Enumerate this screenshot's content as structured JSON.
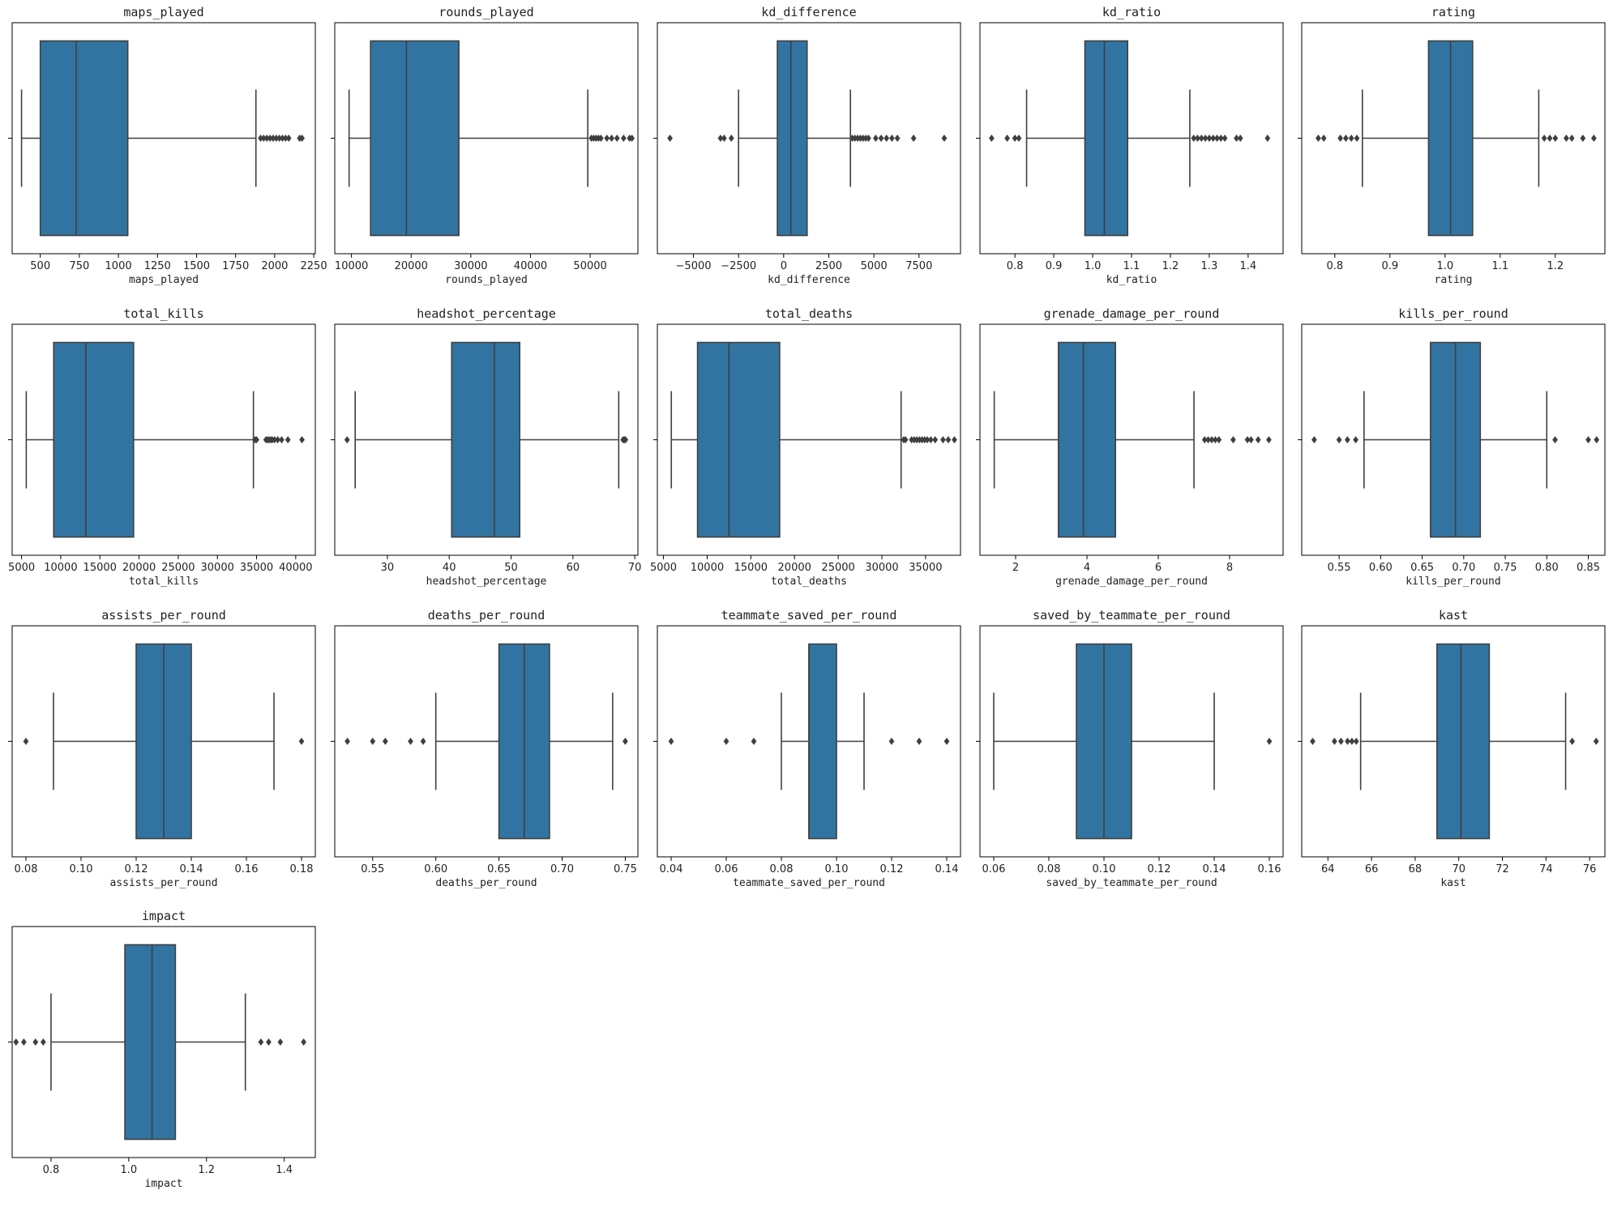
{
  "figure": {
    "box_color": "#3274a1",
    "line_color": "#3f3f3f",
    "outlier_color": "#3f3f3f"
  },
  "chart_data": [
    {
      "type": "box",
      "title": "maps_played",
      "xlabel": "maps_played",
      "xlim": [
        320,
        2260
      ],
      "ticks": [
        500,
        750,
        1000,
        1250,
        1500,
        1750,
        2000,
        2250
      ],
      "tick_labels": [
        "500",
        "750",
        "1000",
        "1250",
        "1500",
        "1750",
        "2000",
        "2250"
      ],
      "whisker_low": 380,
      "q1": 500,
      "median": 730,
      "q3": 1060,
      "whisker_high": 1880,
      "outliers": [
        1910,
        1930,
        1950,
        1970,
        1990,
        2010,
        2030,
        2050,
        2070,
        2090,
        2160,
        2175
      ]
    },
    {
      "type": "box",
      "title": "rounds_played",
      "xlabel": "rounds_played",
      "xlim": [
        7200,
        58000
      ],
      "ticks": [
        10000,
        20000,
        30000,
        40000,
        50000
      ],
      "tick_labels": [
        "10000",
        "20000",
        "30000",
        "40000",
        "50000"
      ],
      "whisker_low": 9600,
      "q1": 13200,
      "median": 19200,
      "q3": 28000,
      "whisker_high": 49600,
      "outliers": [
        50200,
        50600,
        51000,
        51400,
        51800,
        52800,
        53600,
        54500,
        55600,
        56600,
        57000
      ]
    },
    {
      "type": "box",
      "title": "kd_difference",
      "xlabel": "kd_difference",
      "xlim": [
        -7000,
        9800
      ],
      "ticks": [
        -5000,
        -2500,
        0,
        2500,
        5000,
        7500
      ],
      "tick_labels": [
        "−5000",
        "−2500",
        "0",
        "2500",
        "5000",
        "7500"
      ],
      "whisker_low": -2500,
      "q1": -350,
      "median": 400,
      "q3": 1300,
      "whisker_high": 3700,
      "outliers": [
        -6300,
        -3500,
        -3300,
        -2900,
        3800,
        3950,
        4100,
        4250,
        4400,
        4550,
        4700,
        5100,
        5400,
        5700,
        6000,
        6300,
        7200,
        8900
      ]
    },
    {
      "type": "box",
      "title": "kd_ratio",
      "xlabel": "kd_ratio",
      "xlim": [
        0.71,
        1.49
      ],
      "ticks": [
        0.8,
        0.9,
        1.0,
        1.1,
        1.2,
        1.3,
        1.4
      ],
      "tick_labels": [
        "0.8",
        "0.9",
        "1.0",
        "1.1",
        "1.2",
        "1.3",
        "1.4"
      ],
      "whisker_low": 0.83,
      "q1": 0.98,
      "median": 1.03,
      "q3": 1.09,
      "whisker_high": 1.25,
      "outliers": [
        0.74,
        0.78,
        0.8,
        0.81,
        1.26,
        1.27,
        1.28,
        1.29,
        1.3,
        1.31,
        1.32,
        1.33,
        1.34,
        1.37,
        1.38,
        1.45
      ]
    },
    {
      "type": "box",
      "title": "rating",
      "xlabel": "rating",
      "xlim": [
        0.74,
        1.29
      ],
      "ticks": [
        0.8,
        0.9,
        1.0,
        1.1,
        1.2
      ],
      "tick_labels": [
        "0.8",
        "0.9",
        "1.0",
        "1.1",
        "1.2"
      ],
      "whisker_low": 0.85,
      "q1": 0.97,
      "median": 1.01,
      "q3": 1.05,
      "whisker_high": 1.17,
      "outliers": [
        0.77,
        0.78,
        0.81,
        0.82,
        0.83,
        0.84,
        1.18,
        1.19,
        1.2,
        1.22,
        1.23,
        1.25,
        1.27
      ]
    },
    {
      "type": "box",
      "title": "total_kills",
      "xlabel": "total_kills",
      "xlim": [
        3800,
        42500
      ],
      "ticks": [
        5000,
        10000,
        15000,
        20000,
        25000,
        30000,
        35000,
        40000
      ],
      "tick_labels": [
        "5000",
        "10000",
        "15000",
        "20000",
        "25000",
        "30000",
        "35000",
        "40000"
      ],
      "whisker_low": 5600,
      "q1": 9100,
      "median": 13200,
      "q3": 19300,
      "whisker_high": 34600,
      "outliers": [
        34800,
        35000,
        36200,
        36400,
        36600,
        36800,
        37000,
        37300,
        37700,
        38200,
        39000,
        40800
      ]
    },
    {
      "type": "box",
      "title": "headshot_percentage",
      "xlabel": "headshot_percentage",
      "xlim": [
        21.5,
        70.5
      ],
      "ticks": [
        30,
        40,
        50,
        60,
        70
      ],
      "tick_labels": [
        "30",
        "40",
        "50",
        "60",
        "70"
      ],
      "whisker_low": 24.8,
      "q1": 40.4,
      "median": 47.3,
      "q3": 51.4,
      "whisker_high": 67.4,
      "outliers": [
        23.5,
        68.1,
        68.3,
        68.5
      ]
    },
    {
      "type": "box",
      "title": "total_deaths",
      "xlabel": "total_deaths",
      "xlim": [
        4300,
        39000
      ],
      "ticks": [
        5000,
        10000,
        15000,
        20000,
        25000,
        30000,
        35000
      ],
      "tick_labels": [
        "5000",
        "10000",
        "15000",
        "20000",
        "25000",
        "30000",
        "35000"
      ],
      "whisker_low": 5900,
      "q1": 8900,
      "median": 12500,
      "q3": 18300,
      "whisker_high": 32200,
      "outliers": [
        32500,
        32700,
        33400,
        33700,
        34000,
        34300,
        34600,
        34900,
        35200,
        35600,
        36100,
        37000,
        37600,
        38300
      ]
    },
    {
      "type": "box",
      "title": "grenade_damage_per_round",
      "xlabel": "grenade_damage_per_round",
      "xlim": [
        1.0,
        9.5
      ],
      "ticks": [
        2,
        4,
        6,
        8
      ],
      "tick_labels": [
        "2",
        "4",
        "6",
        "8"
      ],
      "whisker_low": 1.4,
      "q1": 3.2,
      "median": 3.9,
      "q3": 4.8,
      "whisker_high": 7.0,
      "outliers": [
        7.3,
        7.4,
        7.5,
        7.6,
        7.7,
        8.1,
        8.5,
        8.6,
        8.8,
        9.1
      ]
    },
    {
      "type": "box",
      "title": "kills_per_round",
      "xlabel": "kills_per_round",
      "xlim": [
        0.505,
        0.87
      ],
      "ticks": [
        0.55,
        0.6,
        0.65,
        0.7,
        0.75,
        0.8,
        0.85
      ],
      "tick_labels": [
        "0.55",
        "0.60",
        "0.65",
        "0.70",
        "0.75",
        "0.80",
        "0.85"
      ],
      "whisker_low": 0.58,
      "q1": 0.66,
      "median": 0.69,
      "q3": 0.72,
      "whisker_high": 0.8,
      "outliers": [
        0.52,
        0.55,
        0.56,
        0.57,
        0.81,
        0.85,
        0.86
      ]
    },
    {
      "type": "box",
      "title": "assists_per_round",
      "xlabel": "assists_per_round",
      "xlim": [
        0.075,
        0.185
      ],
      "ticks": [
        0.08,
        0.1,
        0.12,
        0.14,
        0.16,
        0.18
      ],
      "tick_labels": [
        "0.08",
        "0.10",
        "0.12",
        "0.14",
        "0.16",
        "0.18"
      ],
      "whisker_low": 0.09,
      "q1": 0.12,
      "median": 0.13,
      "q3": 0.14,
      "whisker_high": 0.17,
      "outliers": [
        0.08,
        0.18
      ]
    },
    {
      "type": "box",
      "title": "deaths_per_round",
      "xlabel": "deaths_per_round",
      "xlim": [
        0.52,
        0.76
      ],
      "ticks": [
        0.55,
        0.6,
        0.65,
        0.7,
        0.75
      ],
      "tick_labels": [
        "0.55",
        "0.60",
        "0.65",
        "0.70",
        "0.75"
      ],
      "whisker_low": 0.6,
      "q1": 0.65,
      "median": 0.67,
      "q3": 0.69,
      "whisker_high": 0.74,
      "outliers": [
        0.53,
        0.55,
        0.56,
        0.58,
        0.59,
        0.75
      ]
    },
    {
      "type": "box",
      "title": "teammate_saved_per_round",
      "xlabel": "teammate_saved_per_round",
      "xlim": [
        0.035,
        0.145
      ],
      "ticks": [
        0.04,
        0.06,
        0.08,
        0.1,
        0.12,
        0.14
      ],
      "tick_labels": [
        "0.04",
        "0.06",
        "0.08",
        "0.10",
        "0.12",
        "0.14"
      ],
      "whisker_low": 0.08,
      "q1": 0.09,
      "median": 0.09,
      "q3": 0.1,
      "whisker_high": 0.11,
      "outliers": [
        0.04,
        0.06,
        0.07,
        0.12,
        0.13,
        0.14
      ]
    },
    {
      "type": "box",
      "title": "saved_by_teammate_per_round",
      "xlabel": "saved_by_teammate_per_round",
      "xlim": [
        0.055,
        0.165
      ],
      "ticks": [
        0.06,
        0.08,
        0.1,
        0.12,
        0.14,
        0.16
      ],
      "tick_labels": [
        "0.06",
        "0.08",
        "0.10",
        "0.12",
        "0.14",
        "0.16"
      ],
      "whisker_low": 0.06,
      "q1": 0.09,
      "median": 0.1,
      "q3": 0.11,
      "whisker_high": 0.14,
      "outliers": [
        0.16
      ]
    },
    {
      "type": "box",
      "title": "kast",
      "xlabel": "kast",
      "xlim": [
        62.8,
        76.7
      ],
      "ticks": [
        64,
        66,
        68,
        70,
        72,
        74,
        76
      ],
      "tick_labels": [
        "64",
        "66",
        "68",
        "70",
        "72",
        "74",
        "76"
      ],
      "whisker_low": 65.5,
      "q1": 69.0,
      "median": 70.1,
      "q3": 71.4,
      "whisker_high": 74.9,
      "outliers": [
        63.3,
        64.3,
        64.6,
        64.9,
        65.1,
        65.3,
        75.2,
        76.3
      ]
    },
    {
      "type": "box",
      "title": "impact",
      "xlabel": "impact",
      "xlim": [
        0.7,
        1.48
      ],
      "ticks": [
        0.8,
        1.0,
        1.2,
        1.4
      ],
      "tick_labels": [
        "0.8",
        "1.0",
        "1.2",
        "1.4"
      ],
      "whisker_low": 0.8,
      "q1": 0.99,
      "median": 1.06,
      "q3": 1.12,
      "whisker_high": 1.3,
      "outliers": [
        0.71,
        0.73,
        0.76,
        0.78,
        1.34,
        1.36,
        1.39,
        1.45
      ]
    }
  ]
}
